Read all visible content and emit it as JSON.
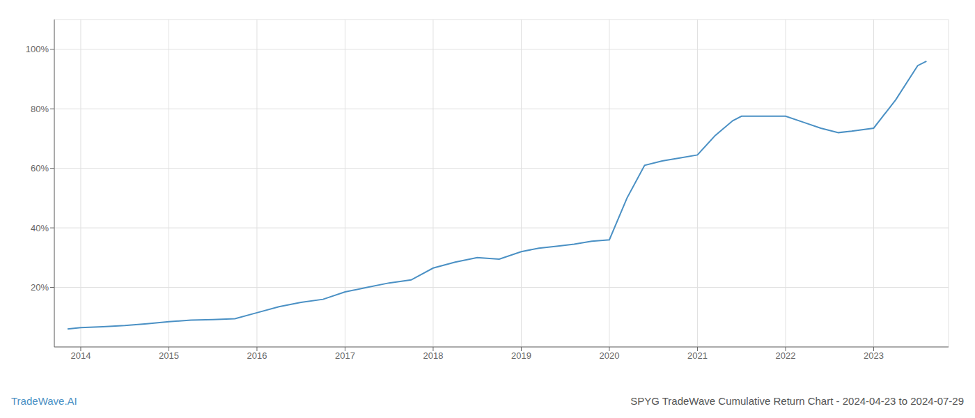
{
  "chart_data": {
    "type": "line",
    "title": "SPYG TradeWave Cumulative Return Chart - 2024-04-23 to 2024-07-29",
    "annotations": [
      "TradeWave.AI"
    ],
    "color": "#4a90c4",
    "x": [
      2013.85,
      2014.0,
      2014.25,
      2014.5,
      2014.75,
      2015.0,
      2015.25,
      2015.5,
      2015.75,
      2016.0,
      2016.25,
      2016.5,
      2016.75,
      2017.0,
      2017.25,
      2017.5,
      2017.75,
      2018.0,
      2018.25,
      2018.5,
      2018.75,
      2019.0,
      2019.2,
      2019.4,
      2019.6,
      2019.8,
      2020.0,
      2020.2,
      2020.4,
      2020.6,
      2020.8,
      2021.0,
      2021.2,
      2021.4,
      2021.5,
      2021.75,
      2022.0,
      2022.2,
      2022.4,
      2022.6,
      2022.75,
      2023.0,
      2023.25,
      2023.5,
      2023.6
    ],
    "values": [
      0.06,
      0.065,
      0.068,
      0.072,
      0.078,
      0.085,
      0.09,
      0.092,
      0.095,
      0.115,
      0.135,
      0.15,
      0.16,
      0.185,
      0.2,
      0.215,
      0.225,
      0.265,
      0.285,
      0.3,
      0.295,
      0.32,
      0.332,
      0.338,
      0.345,
      0.355,
      0.36,
      0.5,
      0.61,
      0.625,
      0.635,
      0.645,
      0.71,
      0.76,
      0.775,
      0.775,
      0.775,
      0.755,
      0.735,
      0.72,
      0.725,
      0.735,
      0.83,
      0.945,
      0.96
    ],
    "xlim": [
      2013.7,
      2023.85
    ],
    "ylim": [
      0.0,
      1.1
    ],
    "xticks": [
      2014,
      2015,
      2016,
      2017,
      2018,
      2019,
      2020,
      2021,
      2022,
      2023
    ],
    "yticks": [
      {
        "value": 0.2,
        "label": "20%"
      },
      {
        "value": 0.4,
        "label": "40%"
      },
      {
        "value": 0.6,
        "label": "60%"
      },
      {
        "value": 0.8,
        "label": "80%"
      },
      {
        "value": 1.0,
        "label": "100%"
      }
    ],
    "grid": true
  }
}
